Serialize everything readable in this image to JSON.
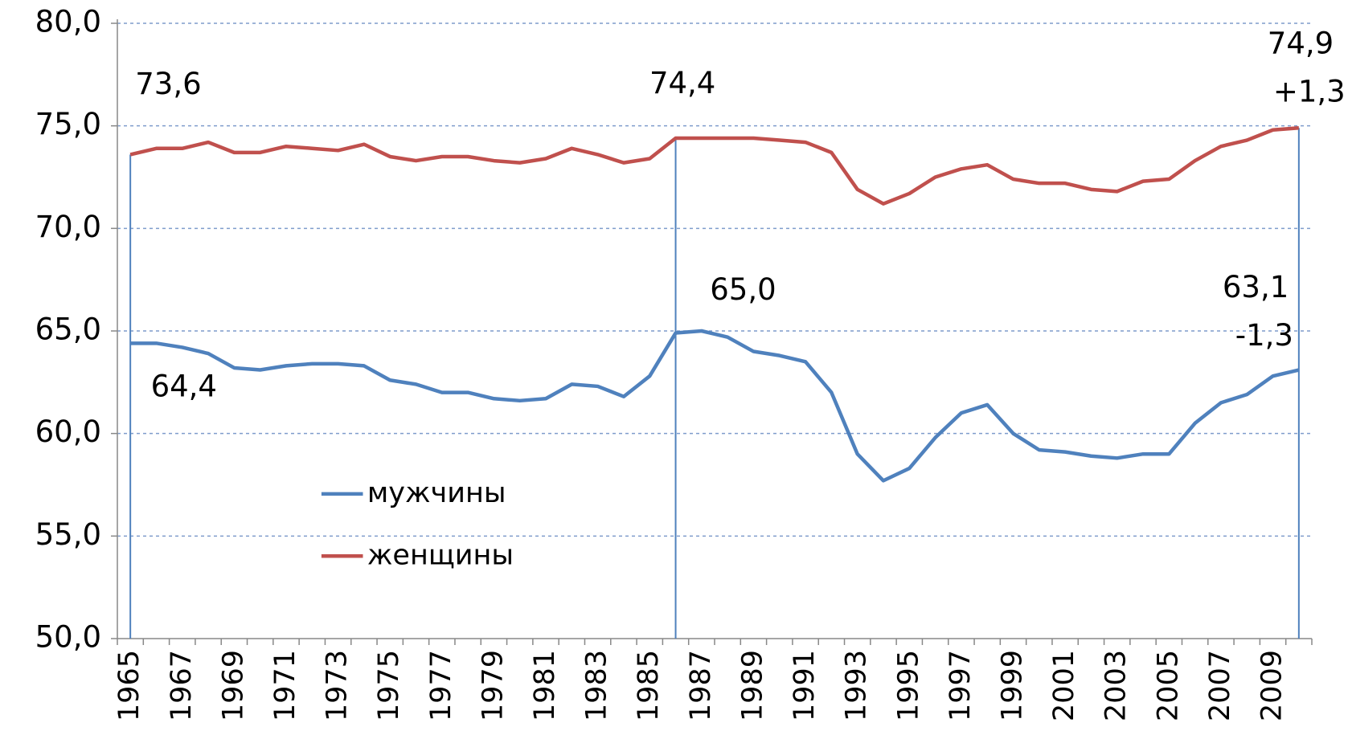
{
  "chart_data": {
    "type": "line",
    "categories": [
      "1965",
      null,
      "1967",
      null,
      "1969",
      null,
      "1971",
      null,
      "1973",
      null,
      "1975",
      null,
      "1977",
      null,
      "1979",
      null,
      "1981",
      null,
      "1983",
      null,
      "1985",
      null,
      "1987",
      null,
      "1989",
      null,
      "1991",
      null,
      "1993",
      null,
      "1995",
      null,
      "1997",
      null,
      "1999",
      null,
      "2001",
      null,
      "2003",
      null,
      "2005",
      null,
      "2007",
      null,
      "2009",
      null
    ],
    "series": [
      {
        "name": "мужчины",
        "color": "#4f81bd",
        "values": [
          64.4,
          64.4,
          64.2,
          63.9,
          63.2,
          63.1,
          63.3,
          63.4,
          63.4,
          63.3,
          62.6,
          62.4,
          62.0,
          62.0,
          61.7,
          61.6,
          61.7,
          62.4,
          62.3,
          61.8,
          62.8,
          64.9,
          65.0,
          64.7,
          64.0,
          63.8,
          63.5,
          62.0,
          59.0,
          57.7,
          58.3,
          59.8,
          61.0,
          61.4,
          60.0,
          59.2,
          59.1,
          58.9,
          58.8,
          59.0,
          59.0,
          60.5,
          61.5,
          61.9,
          62.8,
          63.1
        ],
        "value_labels": [
          "64,4",
          null,
          null,
          null,
          null,
          null,
          null,
          null,
          null,
          null,
          null,
          null,
          null,
          null,
          null,
          null,
          null,
          null,
          null,
          null,
          null,
          null,
          "65,0",
          null,
          null,
          null,
          null,
          null,
          null,
          null,
          null,
          null,
          null,
          null,
          null,
          null,
          null,
          null,
          null,
          null,
          null,
          null,
          null,
          null,
          null,
          "63,1"
        ],
        "annotation": "-1,3"
      },
      {
        "name": "женщины",
        "color": "#c0504d",
        "values": [
          73.6,
          73.9,
          73.9,
          74.2,
          73.7,
          73.7,
          74.0,
          73.9,
          73.8,
          74.1,
          73.5,
          73.3,
          73.5,
          73.5,
          73.3,
          73.2,
          73.4,
          73.9,
          73.6,
          73.2,
          73.4,
          74.4,
          74.4,
          74.4,
          74.4,
          74.3,
          74.2,
          73.7,
          71.9,
          71.2,
          71.7,
          72.5,
          72.9,
          73.1,
          72.4,
          72.2,
          72.2,
          71.9,
          71.8,
          72.3,
          72.4,
          73.3,
          74.0,
          74.3,
          74.8,
          74.9
        ],
        "value_labels": [
          "73,6",
          null,
          null,
          null,
          null,
          null,
          null,
          null,
          null,
          null,
          null,
          null,
          null,
          null,
          null,
          null,
          null,
          null,
          null,
          null,
          null,
          "74,4",
          null,
          null,
          null,
          null,
          null,
          null,
          null,
          null,
          null,
          null,
          null,
          null,
          null,
          null,
          null,
          null,
          null,
          null,
          null,
          null,
          null,
          null,
          null,
          "74,9"
        ],
        "annotation": "+1,3"
      }
    ],
    "ylim": [
      50,
      80
    ],
    "yticks": [
      {
        "value": 50,
        "label": "50,0"
      },
      {
        "value": 55,
        "label": "55,0"
      },
      {
        "value": 60,
        "label": "60,0"
      },
      {
        "value": 65,
        "label": "65,0"
      },
      {
        "value": 70,
        "label": "70,0"
      },
      {
        "value": 75,
        "label": "75,0"
      },
      {
        "value": 80,
        "label": "80,0"
      }
    ],
    "grid": true,
    "legend": "inside"
  }
}
